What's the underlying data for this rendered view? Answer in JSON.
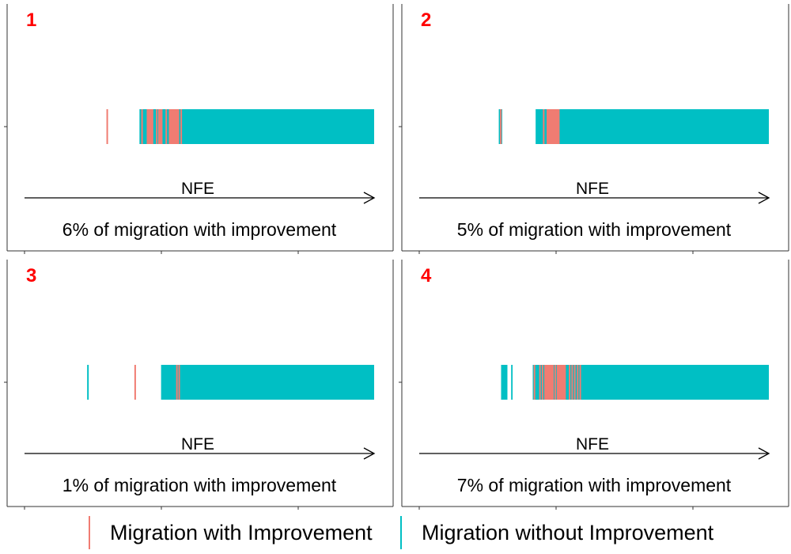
{
  "colors": {
    "with_improvement": "#F07C72",
    "without_improvement": "#00BFC4",
    "panel_number": "#FF0000"
  },
  "legend": {
    "items": [
      {
        "label": "Migration with Improvement",
        "color": "#F07C72"
      },
      {
        "label": "Migration without Improvement",
        "color": "#00BFC4"
      }
    ]
  },
  "chart_data": [
    {
      "type": "strip",
      "panel": "1",
      "axis_label": "NFE",
      "caption": "6% of migration with improvement",
      "xlim": [
        0,
        100
      ],
      "without_improvement": {
        "bands": [
          [
            18.5,
            100
          ]
        ],
        "ticks": []
      },
      "with_improvement": {
        "bands": [
          [
            21.0,
            23.3
          ],
          [
            25.0,
            26.5
          ],
          [
            28.7,
            32.3
          ]
        ],
        "ticks": [
          7.3,
          19.4,
          24.5,
          27.8,
          29.5,
          31.0,
          33.0
        ]
      }
    },
    {
      "type": "strip",
      "panel": "2",
      "axis_label": "NFE",
      "caption": "5% of migration with improvement",
      "xlim": [
        0,
        100
      ],
      "without_improvement": {
        "bands": [
          [
            6.2,
            7.4
          ],
          [
            19.0,
            100
          ]
        ],
        "ticks": []
      },
      "with_improvement": {
        "bands": [
          [
            22.8,
            27.3
          ]
        ],
        "ticks": [
          6.9,
          21.8,
          23.5,
          25.9,
          27.0
        ]
      }
    },
    {
      "type": "strip",
      "panel": "3",
      "axis_label": "NFE",
      "caption": "1% of migration with improvement",
      "xlim": [
        0,
        100
      ],
      "without_improvement": {
        "bands": [
          [
            26.0,
            100
          ]
        ],
        "ticks": [
          0.6
        ]
      },
      "with_improvement": {
        "bands": [],
        "ticks": [
          17.0,
          31.5,
          32.3
        ]
      }
    },
    {
      "type": "strip",
      "panel": "4",
      "axis_label": "NFE",
      "caption": "7% of migration with improvement",
      "xlim": [
        0,
        100
      ],
      "without_improvement": {
        "bands": [
          [
            7.0,
            9.2
          ],
          [
            10.5,
            11.0
          ],
          [
            18.0,
            100
          ]
        ],
        "ticks": []
      },
      "with_improvement": {
        "bands": [
          [
            22.0,
            25.3
          ],
          [
            26.3,
            29.5
          ]
        ],
        "ticks": [
          18.6,
          20.5,
          21.4,
          25.8,
          30.8,
          31.7,
          32.6,
          33.6,
          34.5
        ]
      }
    }
  ]
}
